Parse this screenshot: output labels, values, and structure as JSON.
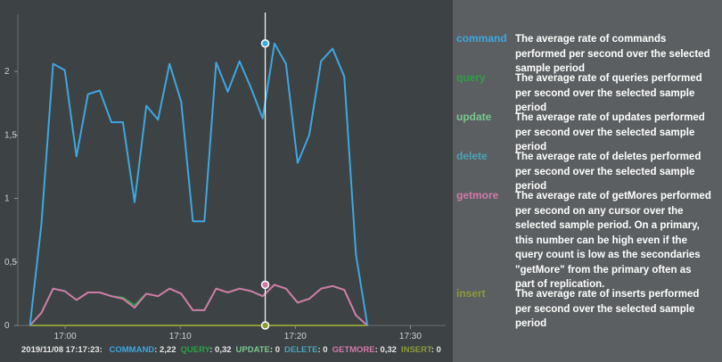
{
  "colors": {
    "command": "#3ea7e0",
    "query": "#2e9e47",
    "update": "#7ac78f",
    "delete": "#49a4b7",
    "getmore": "#d07aa8",
    "insert": "#8c9a3a",
    "cursor": "#ffffff"
  },
  "chart_data": {
    "type": "line",
    "grid": false,
    "y_ticks": [
      "0",
      "0,5",
      "1",
      "1,5",
      "2"
    ],
    "y_tick_values": [
      0,
      0.5,
      1,
      1.5,
      2
    ],
    "ylim": [
      0,
      2.45
    ],
    "x_ticks": [
      "17:00",
      "17:10",
      "17:20",
      "17:30"
    ],
    "x_tick_values": [
      "17:00",
      "17:10",
      "17:20",
      "17:30"
    ],
    "xlim": [
      "16:55:53",
      "17:33:04"
    ],
    "x": [
      "16:56:56",
      "16:57:56",
      "16:58:57",
      "16:59:58",
      "17:00:59",
      "17:01:59",
      "17:03:00",
      "17:04:01",
      "17:05:01",
      "17:06:02",
      "17:07:03",
      "17:08:04",
      "17:09:04",
      "17:10:05",
      "17:11:06",
      "17:12:06",
      "17:13:07",
      "17:14:08",
      "17:15:09",
      "17:16:09",
      "17:17:10",
      "17:18:11",
      "17:19:11",
      "17:20:12",
      "17:21:13",
      "17:22:14",
      "17:23:14",
      "17:24:15",
      "17:25:16",
      "17:26:16"
    ],
    "cursor_time": "17:17:23",
    "series": [
      {
        "name": "command",
        "values": [
          0.0,
          0.8,
          2.06,
          2.01,
          1.33,
          1.82,
          1.85,
          1.6,
          1.6,
          0.97,
          1.73,
          1.62,
          2.06,
          1.76,
          0.82,
          0.82,
          2.07,
          1.84,
          2.08,
          1.87,
          1.63,
          2.22,
          2.06,
          1.28,
          1.5,
          2.08,
          2.18,
          1.96,
          0.56,
          0.0
        ]
      },
      {
        "name": "query",
        "values": [
          0.0,
          0.1,
          0.29,
          0.27,
          0.2,
          0.26,
          0.26,
          0.23,
          0.22,
          0.16,
          0.25,
          0.23,
          0.29,
          0.25,
          0.12,
          0.12,
          0.29,
          0.26,
          0.29,
          0.27,
          0.23,
          0.32,
          0.29,
          0.18,
          0.21,
          0.29,
          0.31,
          0.28,
          0.08,
          0.0
        ]
      },
      {
        "name": "update",
        "values": [
          0,
          0,
          0,
          0,
          0,
          0,
          0,
          0,
          0,
          0,
          0,
          0,
          0,
          0,
          0,
          0,
          0,
          0,
          0,
          0,
          0,
          0,
          0,
          0,
          0,
          0,
          0,
          0,
          0,
          0
        ]
      },
      {
        "name": "delete",
        "values": [
          0,
          0,
          0,
          0,
          0,
          0,
          0,
          0,
          0,
          0,
          0,
          0,
          0,
          0,
          0,
          0,
          0,
          0,
          0,
          0,
          0,
          0,
          0,
          0,
          0,
          0,
          0,
          0,
          0,
          0
        ]
      },
      {
        "name": "getmore",
        "values": [
          0.0,
          0.1,
          0.29,
          0.27,
          0.2,
          0.26,
          0.26,
          0.23,
          0.21,
          0.14,
          0.25,
          0.23,
          0.29,
          0.25,
          0.12,
          0.12,
          0.29,
          0.26,
          0.29,
          0.27,
          0.23,
          0.32,
          0.29,
          0.18,
          0.21,
          0.29,
          0.31,
          0.28,
          0.08,
          0.0
        ]
      },
      {
        "name": "insert",
        "values": [
          0,
          0,
          0,
          0,
          0,
          0,
          0,
          0,
          0,
          0,
          0,
          0,
          0,
          0,
          0,
          0,
          0,
          0,
          0,
          0,
          0,
          0,
          0,
          0,
          0,
          0,
          0,
          0,
          0,
          0
        ]
      }
    ]
  },
  "legend": [
    {
      "key": "command",
      "name": "command",
      "desc": "The average rate of commands performed per second over the selected sample period"
    },
    {
      "key": "query",
      "name": "query",
      "desc": "The average rate of queries performed per second over the selected sample period"
    },
    {
      "key": "update",
      "name": "update",
      "desc": "The average rate of updates performed per second over the selected sample period"
    },
    {
      "key": "delete",
      "name": "delete",
      "desc": "The average rate of deletes performed per second over the selected sample period"
    },
    {
      "key": "getmore",
      "name": "getmore",
      "desc": "The average rate of getMores performed per second on any cursor over the selected sample period. On a primary, this number can be high even if the query count is low as the secondaries \"getMore\" from the primary often as part of replication."
    },
    {
      "key": "insert",
      "name": "insert",
      "desc": "The average rate of inserts performed per second over the selected sample period"
    }
  ],
  "status": {
    "timestamp": "2019/11/08 17:17:23:",
    "items": [
      {
        "key": "command",
        "label": "COMMAND",
        "value": "2,22"
      },
      {
        "key": "query",
        "label": "QUERY",
        "value": "0,32"
      },
      {
        "key": "update",
        "label": "UPDATE",
        "value": "0"
      },
      {
        "key": "delete",
        "label": "DELETE",
        "value": "0"
      },
      {
        "key": "getmore",
        "label": "GETMORE",
        "value": "0,32"
      },
      {
        "key": "insert",
        "label": "INSERT",
        "value": "0"
      }
    ]
  }
}
